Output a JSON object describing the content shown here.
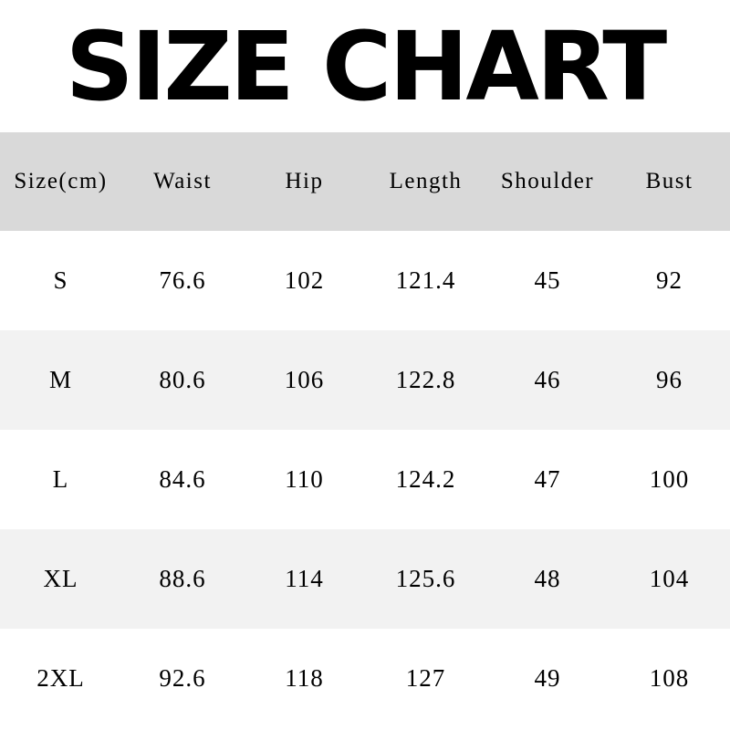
{
  "title": "SIZE CHART",
  "colors": {
    "header_bg": "#d9d9d9",
    "alt_row_bg": "#f2f2f2",
    "row_bg": "#ffffff",
    "text": "#000000"
  },
  "table": {
    "headers": [
      "Size(cm)",
      "Waist",
      "Hip",
      "Length",
      "Shoulder",
      "Bust"
    ],
    "rows": [
      [
        "S",
        "76.6",
        "102",
        "121.4",
        "45",
        "92"
      ],
      [
        "M",
        "80.6",
        "106",
        "122.8",
        "46",
        "96"
      ],
      [
        "L",
        "84.6",
        "110",
        "124.2",
        "47",
        "100"
      ],
      [
        "XL",
        "88.6",
        "114",
        "125.6",
        "48",
        "104"
      ],
      [
        "2XL",
        "92.6",
        "118",
        "127",
        "49",
        "108"
      ]
    ]
  }
}
